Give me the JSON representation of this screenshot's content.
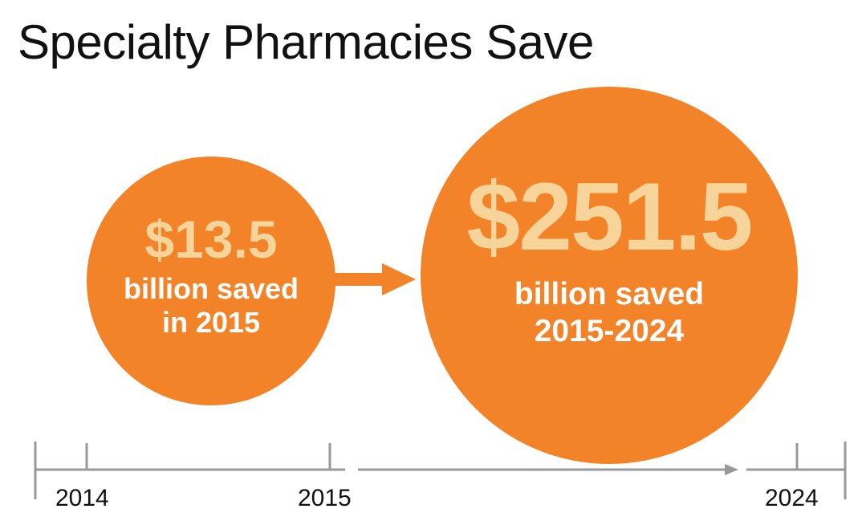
{
  "title": "Specialty Pharmacies Save",
  "circles": [
    {
      "amount": "$13.5",
      "line1": "billion saved",
      "line2": "in 2015"
    },
    {
      "amount": "$251.5",
      "line1": "billion saved",
      "line2": "2015-2024"
    }
  ],
  "timeline": {
    "labels": [
      "2014",
      "2015",
      "2024"
    ]
  },
  "colors": {
    "circle": "#f28328",
    "amount_text": "#f7d49a",
    "axis": "#999999"
  }
}
